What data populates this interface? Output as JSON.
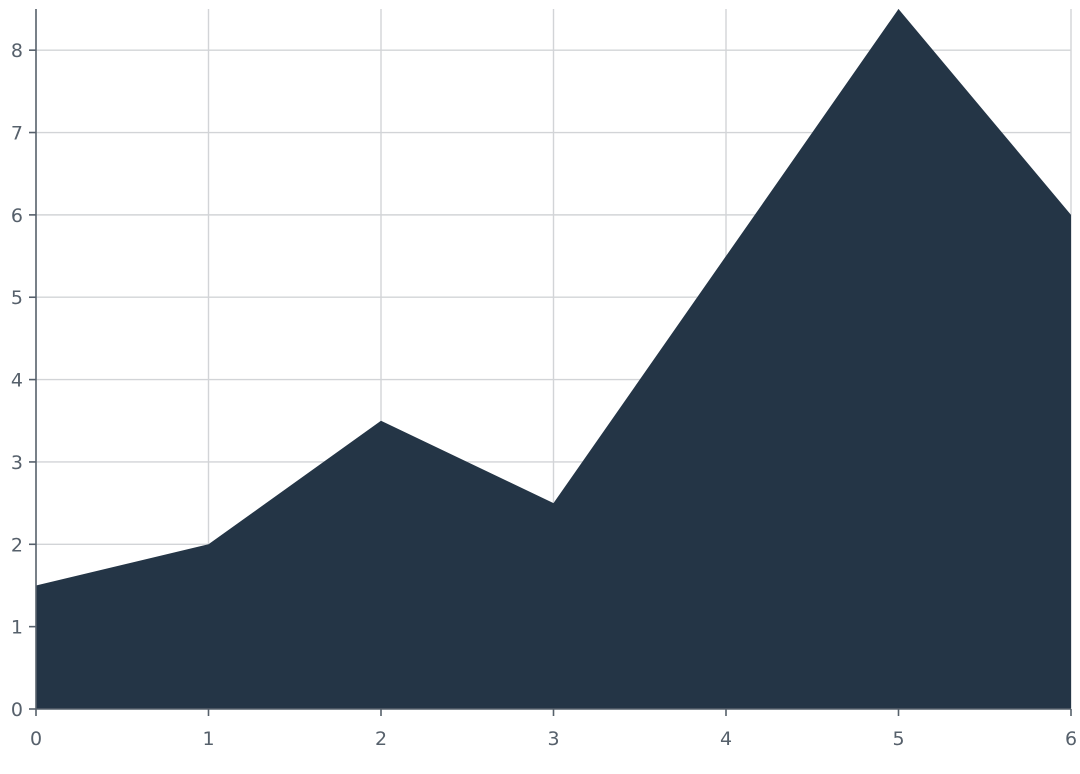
{
  "chart_data": {
    "type": "area",
    "x": [
      0,
      1,
      2,
      3,
      4,
      5,
      6
    ],
    "series": [
      {
        "values": [
          1.5,
          2,
          3.5,
          2.5,
          5.5,
          8.5,
          6
        ]
      }
    ],
    "xlim": [
      0,
      6
    ],
    "ylim": [
      0,
      8.5
    ],
    "xticks": [
      0,
      1,
      2,
      3,
      4,
      5,
      6
    ],
    "yticks": [
      0,
      1,
      2,
      3,
      4,
      5,
      6,
      7,
      8
    ],
    "grid": true,
    "colors": {
      "fill": "#243546",
      "grid": "#d2d4d7",
      "axis": "#56606b"
    }
  }
}
